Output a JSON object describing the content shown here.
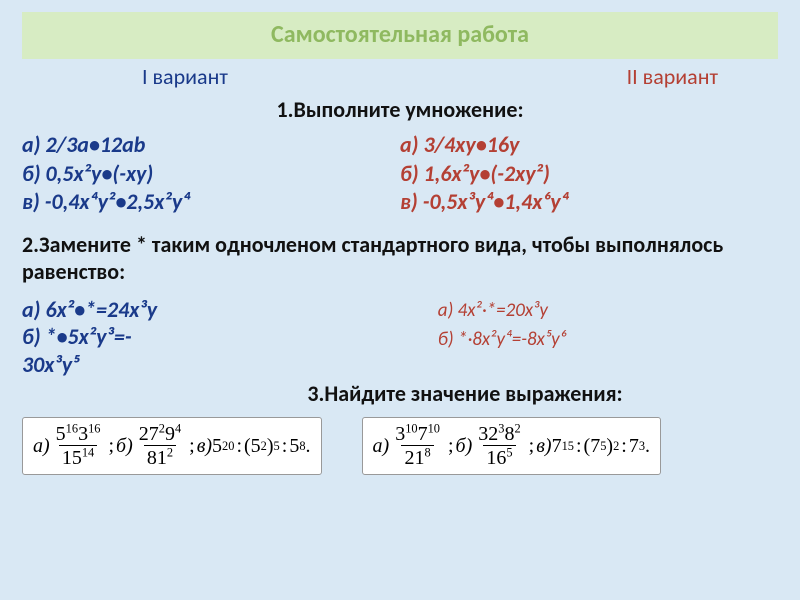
{
  "colors": {
    "slide_bg": "#d9e8f4",
    "title_bg": "#d7ecc3",
    "title_fg": "#8fb960",
    "variant1": "#1a3a8a",
    "variant2": "#b44034",
    "text": "#111111",
    "box_bg": "#ffffff",
    "box_border": "#999999"
  },
  "typography": {
    "family_main": "Calibri, Arial, sans-serif",
    "family_math": "Times New Roman, serif",
    "title_size_pt": 18,
    "body_size_pt": 16,
    "eq_size_pt": 15
  },
  "title": "Самостоятельная работа",
  "variant1_label": "I вариант",
  "variant2_label": "II вариант",
  "task1": {
    "heading": "1.Выполните умножение:",
    "left": {
      "a": "а) 2/3а•12аb",
      "b": "б) 0,5х²у•(-ху)",
      "c": "в) -0,4х⁴у²•2,5х²у⁴"
    },
    "right": {
      "a": "а) 3/4ху•16у",
      "b": "б) 1,6х²у•(-2ху²)",
      "c": "в) -0,5х³у⁴•1,4х⁶у⁴"
    }
  },
  "task2": {
    "heading": "2.Замените * таким одночленом стандартного вида, чтобы выполнялось равенство:",
    "left": {
      "a": "а) 6х²•*=24х³у",
      "b1": "б) *•5х²у³=-",
      "b2": "30х³у⁵"
    },
    "right": {
      "a": "а) 4х²·*=20х³у",
      "b": "б) *·8х²у⁴=-8х⁵у⁶"
    }
  },
  "task3": {
    "heading": "3.Найдите значение выражения:",
    "eq_left": {
      "a_label": "а)",
      "a_num_base1": "5",
      "a_num_exp1": "16",
      "a_num_base2": "3",
      "a_num_exp2": "16",
      "a_den_base": "15",
      "a_den_exp": "14",
      "b_label": "б)",
      "b_num_base1": "27",
      "b_num_exp1": "2",
      "b_num_base2": "9",
      "b_num_exp2": "4",
      "b_den_base": "81",
      "b_den_exp": "2",
      "c_label": "в)",
      "c_1_base": "5",
      "c_1_exp": "20",
      "c_2_inner_base": "5",
      "c_2_inner_exp": "2",
      "c_2_outer_exp": "5",
      "c_3_base": "5",
      "c_3_exp": "8"
    },
    "eq_right": {
      "a_label": "а)",
      "a_num_base1": "3",
      "a_num_exp1": "10",
      "a_num_base2": "7",
      "a_num_exp2": "10",
      "a_den_base": "21",
      "a_den_exp": "8",
      "b_label": "б)",
      "b_num_base1": "32",
      "b_num_exp1": "3",
      "b_num_base2": "8",
      "b_num_exp2": "2",
      "b_den_base": "16",
      "b_den_exp": "5",
      "c_label": "в)",
      "c_1_base": "7",
      "c_1_exp": "15",
      "c_2_inner_base": "7",
      "c_2_inner_exp": "5",
      "c_2_outer_exp": "2",
      "c_3_base": "7",
      "c_3_exp": "3"
    }
  }
}
